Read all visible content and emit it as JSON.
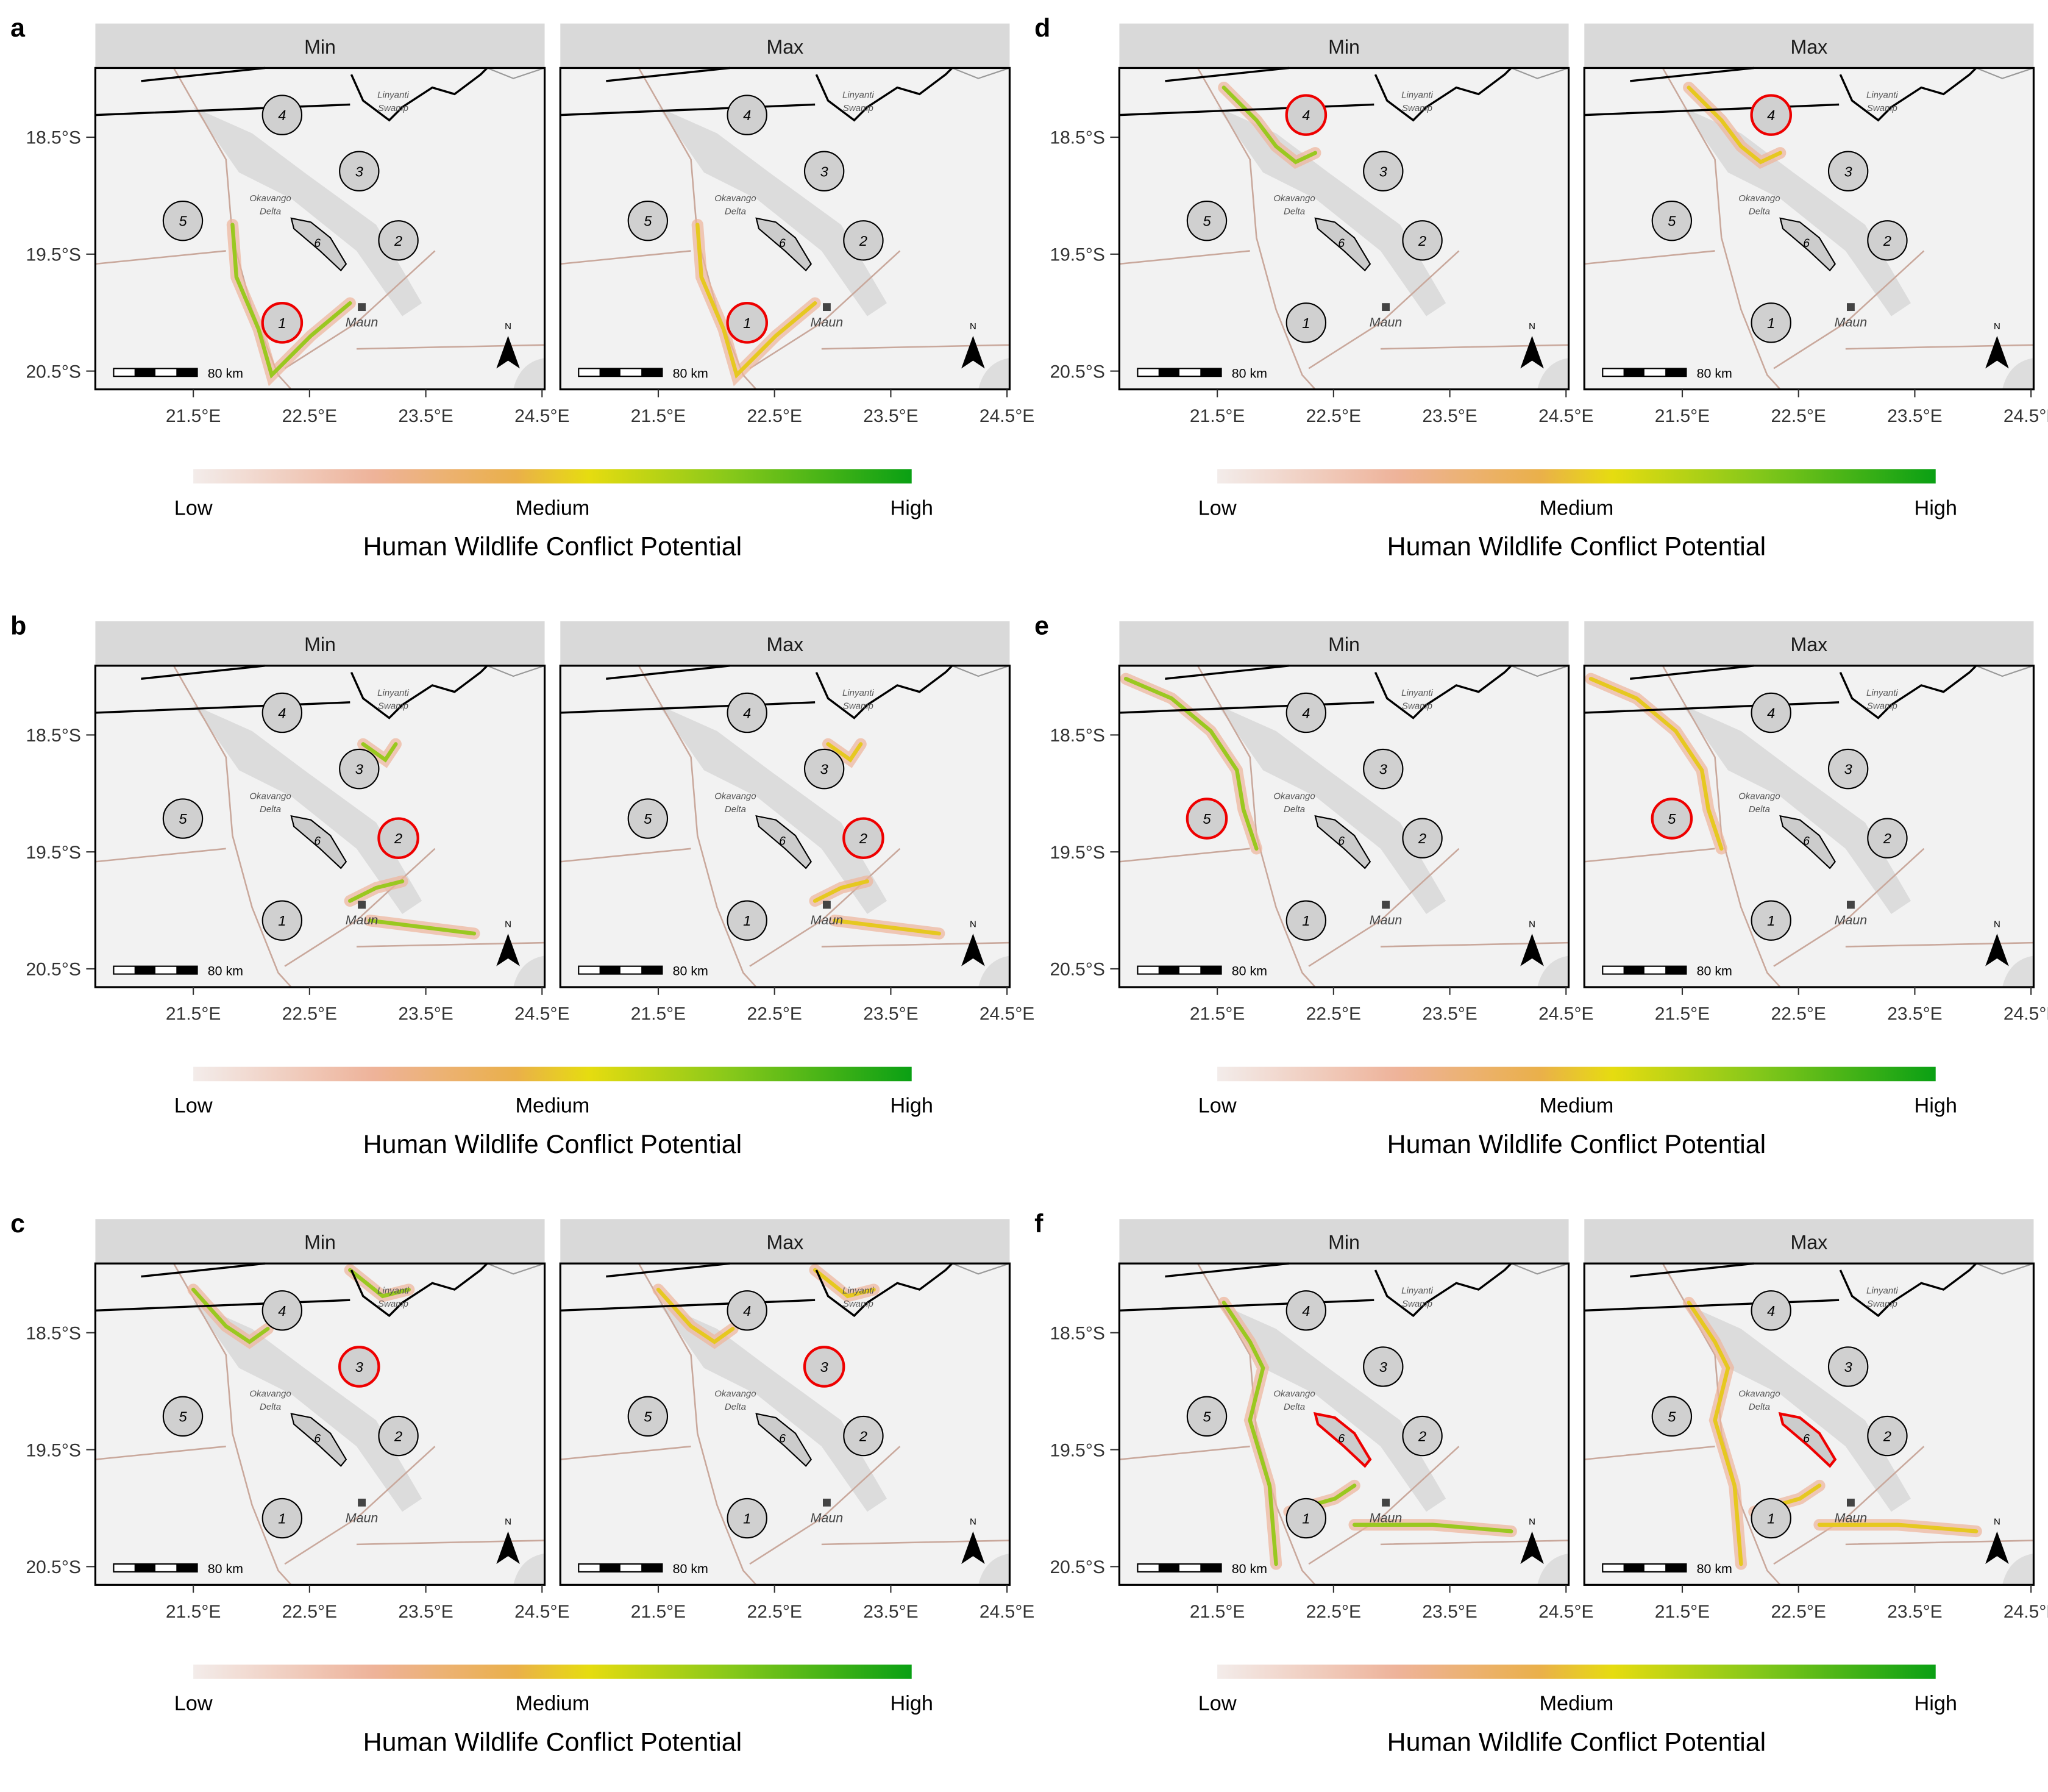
{
  "panels": [
    {
      "label": "a",
      "highlight": 1
    },
    {
      "label": "b",
      "highlight": 2
    },
    {
      "label": "c",
      "highlight": 3
    },
    {
      "label": "d",
      "highlight": 4
    },
    {
      "label": "e",
      "highlight": 5
    },
    {
      "label": "f",
      "highlight": 6
    }
  ],
  "facets": [
    "Min",
    "Max"
  ],
  "y_ticks": [
    "18.5°S",
    "19.5°S",
    "20.5°S"
  ],
  "x_ticks": [
    "21.5°E",
    "22.5°E",
    "23.5°E",
    "24.5°E"
  ],
  "map_labels": {
    "swamp": [
      "Linyanti",
      "Swamp"
    ],
    "delta": [
      "Okavango",
      "Delta"
    ],
    "town": "Maun",
    "regions": [
      "1",
      "2",
      "3",
      "4",
      "5",
      "6"
    ],
    "scale": "80 km",
    "north": "N"
  },
  "legend": {
    "low": "Low",
    "medium": "Medium",
    "high": "High",
    "title": "Human Wildlife Conflict Potential"
  }
}
